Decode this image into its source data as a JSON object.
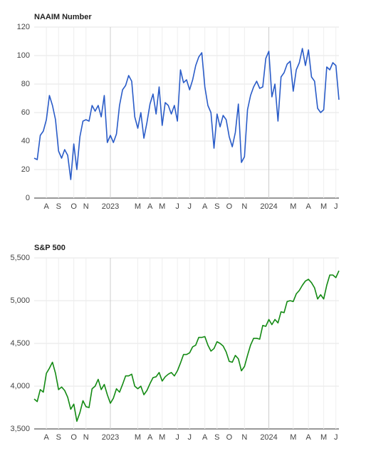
{
  "chart_data": [
    {
      "type": "line",
      "title": "NAAIM Number",
      "categories": [
        null,
        null,
        null,
        null,
        "A",
        null,
        null,
        null,
        "S",
        null,
        null,
        null,
        null,
        "O",
        null,
        null,
        null,
        "N",
        null,
        null,
        null,
        null,
        null,
        null,
        null,
        "2023",
        null,
        null,
        null,
        null,
        null,
        null,
        null,
        null,
        "M",
        null,
        null,
        null,
        "A",
        null,
        null,
        null,
        "M",
        null,
        null,
        null,
        null,
        "J",
        null,
        null,
        null,
        "J",
        null,
        null,
        null,
        null,
        "A",
        null,
        null,
        null,
        "S",
        null,
        null,
        null,
        "O",
        null,
        null,
        null,
        null,
        "N",
        null,
        null,
        null,
        null,
        null,
        null,
        null,
        "2024",
        null,
        null,
        null,
        null,
        null,
        null,
        null,
        "M",
        null,
        null,
        null,
        null,
        "A",
        null,
        null,
        null,
        null,
        "M",
        null,
        null,
        null,
        "J",
        null
      ],
      "series": [
        {
          "name": "NAAIM Number",
          "color": "#2a5cc8",
          "values": [
            28,
            27,
            44,
            47,
            55,
            72,
            65,
            55,
            33,
            28,
            34,
            30,
            13,
            38,
            20,
            43,
            54,
            55,
            54,
            65,
            61,
            65,
            57,
            72,
            39,
            44,
            39,
            45,
            65,
            76,
            79,
            86,
            82,
            57,
            49,
            60,
            42,
            53,
            66,
            73,
            59,
            78,
            51,
            67,
            65,
            59,
            65,
            54,
            90,
            81,
            83,
            76,
            83,
            93,
            99,
            102,
            78,
            65,
            60,
            35,
            59,
            50,
            58,
            55,
            43,
            36,
            46,
            66,
            25,
            29,
            62,
            72,
            78,
            82,
            77,
            78,
            98,
            103,
            71,
            80,
            54,
            85,
            88,
            94,
            96,
            75,
            90,
            95,
            105,
            93,
            104,
            85,
            82,
            63,
            60,
            62,
            92,
            90,
            95,
            93,
            69
          ]
        }
      ],
      "ylim": [
        0,
        120
      ],
      "yticks": [
        0,
        20,
        40,
        60,
        80,
        100,
        120
      ],
      "grid": true
    },
    {
      "type": "line",
      "title": "S&P 500",
      "categories": [
        null,
        null,
        null,
        null,
        "A",
        null,
        null,
        null,
        "S",
        null,
        null,
        null,
        null,
        "O",
        null,
        null,
        null,
        "N",
        null,
        null,
        null,
        null,
        null,
        null,
        null,
        "2023",
        null,
        null,
        null,
        null,
        null,
        null,
        null,
        null,
        "M",
        null,
        null,
        null,
        "A",
        null,
        null,
        null,
        "M",
        null,
        null,
        null,
        null,
        "J",
        null,
        null,
        null,
        "J",
        null,
        null,
        null,
        null,
        "A",
        null,
        null,
        null,
        "S",
        null,
        null,
        null,
        "O",
        null,
        null,
        null,
        null,
        "N",
        null,
        null,
        null,
        null,
        null,
        null,
        null,
        "2024",
        null,
        null,
        null,
        null,
        null,
        null,
        null,
        "M",
        null,
        null,
        null,
        null,
        "A",
        null,
        null,
        null,
        null,
        "M",
        null,
        null,
        null,
        "J",
        null
      ],
      "series": [
        {
          "name": "S&P 500",
          "color": "#138a13",
          "values": [
            3850,
            3820,
            3960,
            3930,
            4150,
            4210,
            4280,
            4150,
            3960,
            3990,
            3950,
            3870,
            3730,
            3790,
            3590,
            3690,
            3830,
            3760,
            3750,
            3970,
            4000,
            4080,
            3960,
            4020,
            3900,
            3800,
            3860,
            3970,
            3930,
            4020,
            4120,
            4120,
            4140,
            4000,
            3970,
            4000,
            3900,
            3950,
            4030,
            4100,
            4110,
            4160,
            4060,
            4110,
            4140,
            4160,
            4120,
            4180,
            4270,
            4370,
            4370,
            4390,
            4460,
            4480,
            4570,
            4570,
            4580,
            4480,
            4410,
            4440,
            4520,
            4500,
            4470,
            4400,
            4290,
            4280,
            4360,
            4320,
            4180,
            4230,
            4360,
            4480,
            4560,
            4560,
            4550,
            4710,
            4700,
            4780,
            4720,
            4780,
            4740,
            4870,
            4860,
            4990,
            5000,
            4990,
            5080,
            5120,
            5180,
            5230,
            5250,
            5210,
            5150,
            5020,
            5070,
            5020,
            5180,
            5300,
            5300,
            5270,
            5350
          ]
        }
      ],
      "ylim": [
        3500,
        5500
      ],
      "yticks": [
        {
          "value": 3500,
          "label": "3,500"
        },
        {
          "value": 4000,
          "label": "4,000"
        },
        {
          "value": 4500,
          "label": "4,500"
        },
        {
          "value": 5000,
          "label": "5,000"
        },
        {
          "value": 5500,
          "label": "5,500"
        }
      ],
      "grid": true
    }
  ]
}
